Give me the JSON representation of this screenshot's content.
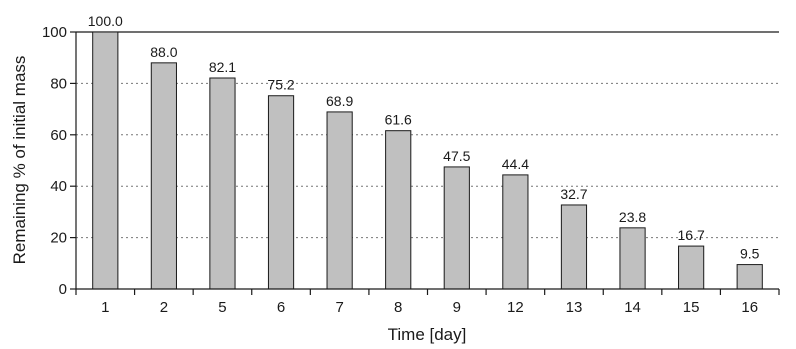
{
  "chart_data": {
    "type": "bar",
    "title": "",
    "xlabel": "Time [day]",
    "ylabel": "Remaining % of initial mass",
    "categories": [
      "1",
      "2",
      "5",
      "6",
      "7",
      "8",
      "9",
      "12",
      "13",
      "14",
      "15",
      "16"
    ],
    "values": [
      100.0,
      88.0,
      82.1,
      75.2,
      68.9,
      61.6,
      47.5,
      44.4,
      32.7,
      23.8,
      16.7,
      9.5
    ],
    "value_labels": [
      "100.0",
      "88.0",
      "82.1",
      "75.2",
      "68.9",
      "61.6",
      "47.5",
      "44.4",
      "32.7",
      "23.8",
      "16.7",
      "9.5"
    ],
    "ylim": [
      0,
      100
    ],
    "yticks": [
      0,
      20,
      40,
      60,
      80,
      100
    ],
    "ytick_labels": [
      "0",
      "20",
      "40",
      "60",
      "80",
      "100"
    ],
    "grid": "horizontal dotted",
    "legend": "none",
    "colors": {
      "bar_fill": "#c0c0c0",
      "bar_stroke": "#1a1a1a",
      "grid": "#777777",
      "axis": "#1a1a1a"
    }
  }
}
